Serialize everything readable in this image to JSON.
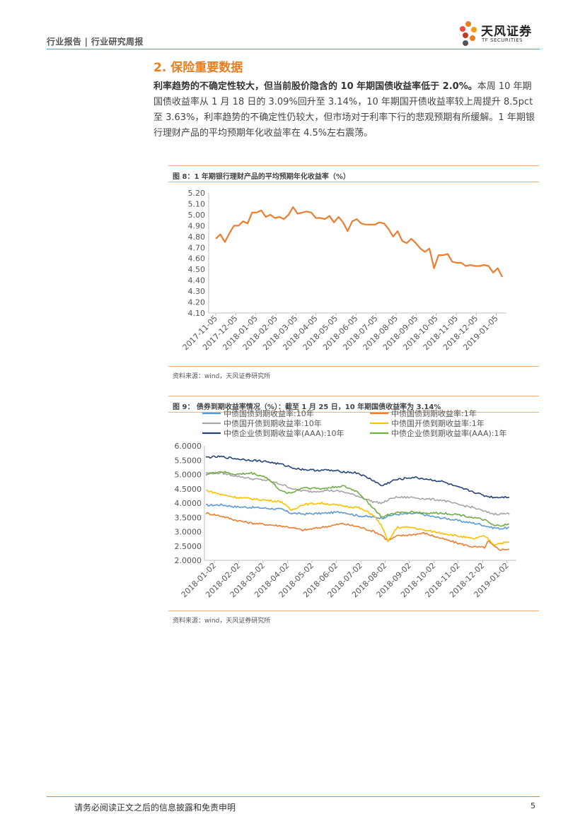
{
  "header": {
    "left_text": "行业报告 | 行业研究周报",
    "brand_cn": "天风证券",
    "brand_en": "TF SECURITIES"
  },
  "section": {
    "title": "2. 保险重要数据",
    "para_bold": "利率趋势的不确定性较大，但当前股价隐含的 10 年期国债收益率低于 2.0%。",
    "para_rest": "本周 10 年期国债收益率从 1 月 18 日的 3.09%回升至 3.14%，10 年期国开债收益率较上周提升 8.5pct 至 3.63%，利率趋势的不确定性仍较大，但市场对于利率下行的悲观预期有所缓解。1 年期银行理财产品的平均预期年化收益率在 4.5%左右震荡。"
  },
  "figure8": {
    "title": "图 8：1 年期银行理财产品的平均预期年化收益率（%）",
    "source": "资料来源：wind，天风证券研究所"
  },
  "figure9": {
    "title": "图 9：  债券到期收益率情况（%）：截至 1 月 25 日，10 年期国债收益率为 3.14%",
    "source": "资料来源：wind，天风证券研究所"
  },
  "footer": {
    "disclaimer": "请务必阅读正文之后的信息披露和免责申明",
    "page": "5"
  },
  "chart_data": [
    {
      "type": "line",
      "color": "#ed7d31",
      "x_ticks": [
        "2017-11-05",
        "2017-12-05",
        "2018-01-05",
        "2018-02-05",
        "2018-03-05",
        "2018-04-05",
        "2018-05-05",
        "2018-06-05",
        "2018-07-05",
        "2018-08-05",
        "2018-09-05",
        "2018-10-05",
        "2018-11-05",
        "2018-12-05",
        "2019-01-05"
      ],
      "y_ticks": [
        "5.20",
        "5.10",
        "5.00",
        "4.90",
        "4.80",
        "4.70",
        "4.60",
        "4.50",
        "4.40",
        "4.30",
        "4.20",
        "4.10"
      ],
      "ylim": [
        4.1,
        5.2
      ],
      "grid": false,
      "values": [
        4.78,
        4.82,
        4.75,
        4.83,
        4.9,
        4.9,
        4.94,
        4.92,
        5.02,
        5.02,
        5.04,
        4.98,
        5.0,
        4.97,
        4.98,
        4.96,
        5.0,
        5.07,
        5.01,
        5.02,
        5.03,
        5.02,
        4.97,
        4.97,
        4.96,
        4.99,
        4.93,
        4.98,
        4.93,
        4.85,
        4.94,
        4.96,
        4.92,
        4.91,
        4.91,
        4.91,
        4.93,
        4.92,
        4.87,
        4.8,
        4.85,
        4.76,
        4.74,
        4.78,
        4.74,
        4.69,
        4.66,
        4.69,
        4.51,
        4.63,
        4.63,
        4.64,
        4.57,
        4.56,
        4.56,
        4.53,
        4.54,
        4.53,
        4.53,
        4.54,
        4.53,
        4.47,
        4.51,
        4.43
      ]
    },
    {
      "type": "line",
      "x_ticks": [
        "2018-01-02",
        "2018-02-02",
        "2018-03-02",
        "2018-04-02",
        "2018-05-02",
        "2018-06-02",
        "2018-07-02",
        "2018-08-02",
        "2018-09-02",
        "2018-10-02",
        "2018-11-02",
        "2018-12-02",
        "2019-01-02"
      ],
      "y_ticks": [
        "6.0000",
        "5.5000",
        "5.0000",
        "4.5000",
        "4.0000",
        "3.5000",
        "3.0000",
        "2.5000",
        "2.0000"
      ],
      "ylim": [
        2.0,
        6.0
      ],
      "grid": false,
      "legend_position": "top",
      "series": [
        {
          "name": "中债国债到期收益率:10年",
          "color": "#5b9bd5",
          "anchors": [
            [
              0,
              3.92
            ],
            [
              0.05,
              3.94
            ],
            [
              0.1,
              3.87
            ],
            [
              0.15,
              3.85
            ],
            [
              0.2,
              3.82
            ],
            [
              0.25,
              3.78
            ],
            [
              0.28,
              3.65
            ],
            [
              0.32,
              3.62
            ],
            [
              0.38,
              3.64
            ],
            [
              0.45,
              3.69
            ],
            [
              0.5,
              3.56
            ],
            [
              0.55,
              3.51
            ],
            [
              0.58,
              3.48
            ],
            [
              0.62,
              3.6
            ],
            [
              0.7,
              3.64
            ],
            [
              0.75,
              3.52
            ],
            [
              0.8,
              3.45
            ],
            [
              0.85,
              3.35
            ],
            [
              0.9,
              3.27
            ],
            [
              0.94,
              3.15
            ],
            [
              0.97,
              3.11
            ],
            [
              1.0,
              3.14
            ]
          ]
        },
        {
          "name": "中债国债到期收益率:1年",
          "color": "#ed7d31",
          "anchors": [
            [
              0,
              3.65
            ],
            [
              0.05,
              3.55
            ],
            [
              0.1,
              3.4
            ],
            [
              0.15,
              3.3
            ],
            [
              0.2,
              3.25
            ],
            [
              0.25,
              3.2
            ],
            [
              0.28,
              3.15
            ],
            [
              0.32,
              3.05
            ],
            [
              0.38,
              3.15
            ],
            [
              0.45,
              3.28
            ],
            [
              0.5,
              3.18
            ],
            [
              0.55,
              3.02
            ],
            [
              0.58,
              2.88
            ],
            [
              0.6,
              2.68
            ],
            [
              0.63,
              2.85
            ],
            [
              0.68,
              2.9
            ],
            [
              0.72,
              2.95
            ],
            [
              0.78,
              2.75
            ],
            [
              0.83,
              2.6
            ],
            [
              0.88,
              2.47
            ],
            [
              0.92,
              2.45
            ],
            [
              0.93,
              2.68
            ],
            [
              0.95,
              2.48
            ],
            [
              0.97,
              2.37
            ],
            [
              1.0,
              2.4
            ]
          ]
        },
        {
          "name": "中债国开债到期收益率:10年",
          "color": "#a5a5a5",
          "anchors": [
            [
              0,
              5.05
            ],
            [
              0.05,
              5.05
            ],
            [
              0.1,
              4.95
            ],
            [
              0.15,
              4.85
            ],
            [
              0.2,
              4.8
            ],
            [
              0.25,
              4.65
            ],
            [
              0.3,
              4.45
            ],
            [
              0.35,
              4.4
            ],
            [
              0.4,
              4.45
            ],
            [
              0.45,
              4.4
            ],
            [
              0.5,
              4.25
            ],
            [
              0.55,
              4.05
            ],
            [
              0.58,
              4.0
            ],
            [
              0.62,
              4.2
            ],
            [
              0.68,
              4.2
            ],
            [
              0.72,
              4.15
            ],
            [
              0.78,
              4.1
            ],
            [
              0.83,
              3.95
            ],
            [
              0.88,
              3.85
            ],
            [
              0.92,
              3.7
            ],
            [
              0.95,
              3.62
            ],
            [
              1.0,
              3.63
            ]
          ]
        },
        {
          "name": "中债国开债到期收益率:1年",
          "color": "#ffc000",
          "anchors": [
            [
              0,
              4.45
            ],
            [
              0.05,
              4.3
            ],
            [
              0.1,
              4.2
            ],
            [
              0.15,
              4.15
            ],
            [
              0.2,
              4.1
            ],
            [
              0.25,
              4.05
            ],
            [
              0.28,
              3.75
            ],
            [
              0.32,
              3.95
            ],
            [
              0.38,
              4.0
            ],
            [
              0.45,
              3.9
            ],
            [
              0.5,
              3.85
            ],
            [
              0.55,
              3.6
            ],
            [
              0.58,
              3.2
            ],
            [
              0.6,
              2.65
            ],
            [
              0.63,
              3.15
            ],
            [
              0.68,
              3.15
            ],
            [
              0.72,
              3.05
            ],
            [
              0.78,
              2.95
            ],
            [
              0.83,
              2.85
            ],
            [
              0.88,
              2.75
            ],
            [
              0.92,
              2.85
            ],
            [
              0.95,
              2.55
            ],
            [
              0.97,
              2.6
            ],
            [
              1.0,
              2.63
            ]
          ]
        },
        {
          "name": "中债企业债到期收益率(AAA):10年",
          "color": "#264478",
          "anchors": [
            [
              0,
              5.6
            ],
            [
              0.05,
              5.62
            ],
            [
              0.1,
              5.55
            ],
            [
              0.15,
              5.5
            ],
            [
              0.2,
              5.45
            ],
            [
              0.25,
              5.35
            ],
            [
              0.3,
              5.2
            ],
            [
              0.35,
              5.15
            ],
            [
              0.4,
              5.15
            ],
            [
              0.45,
              5.1
            ],
            [
              0.5,
              5.05
            ],
            [
              0.55,
              4.8
            ],
            [
              0.58,
              4.6
            ],
            [
              0.62,
              4.8
            ],
            [
              0.68,
              4.9
            ],
            [
              0.72,
              4.85
            ],
            [
              0.78,
              4.75
            ],
            [
              0.83,
              4.55
            ],
            [
              0.88,
              4.4
            ],
            [
              0.92,
              4.25
            ],
            [
              0.95,
              4.2
            ],
            [
              1.0,
              4.22
            ]
          ]
        },
        {
          "name": "中债企业债到期收益率(AAA):1年",
          "color": "#70ad47",
          "anchors": [
            [
              0,
              5.0
            ],
            [
              0.05,
              5.1
            ],
            [
              0.1,
              5.0
            ],
            [
              0.15,
              5.05
            ],
            [
              0.2,
              4.9
            ],
            [
              0.25,
              4.4
            ],
            [
              0.28,
              4.35
            ],
            [
              0.32,
              4.55
            ],
            [
              0.38,
              4.5
            ],
            [
              0.45,
              4.6
            ],
            [
              0.5,
              4.4
            ],
            [
              0.55,
              3.85
            ],
            [
              0.58,
              3.5
            ],
            [
              0.62,
              3.65
            ],
            [
              0.68,
              3.7
            ],
            [
              0.72,
              3.65
            ],
            [
              0.78,
              3.65
            ],
            [
              0.83,
              3.6
            ],
            [
              0.88,
              3.5
            ],
            [
              0.92,
              3.4
            ],
            [
              0.95,
              3.2
            ],
            [
              1.0,
              3.25
            ]
          ]
        }
      ]
    }
  ]
}
